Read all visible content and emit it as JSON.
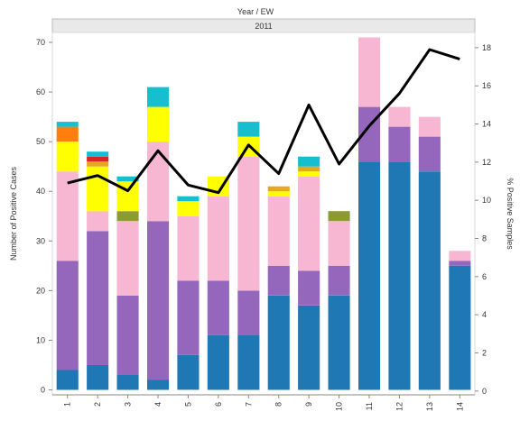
{
  "header": {
    "label": "Year  /  EW",
    "year": "2011"
  },
  "chart_data": {
    "type": "bar",
    "stacked": true,
    "categories": [
      "1",
      "2",
      "3",
      "4",
      "5",
      "6",
      "7",
      "8",
      "9",
      "10",
      "11",
      "12",
      "13",
      "14"
    ],
    "series": [
      {
        "color": "#1f77b4",
        "values": [
          4,
          5,
          3,
          2,
          7,
          11,
          11,
          19,
          17,
          19,
          46,
          46,
          44,
          25
        ]
      },
      {
        "color": "#9467bd",
        "values": [
          22,
          27,
          16,
          32,
          15,
          11,
          9,
          6,
          7,
          6,
          11,
          7,
          7,
          1
        ]
      },
      {
        "color": "#f7b6d2",
        "values": [
          18,
          4,
          15,
          16,
          13,
          17,
          27,
          14,
          19,
          9,
          14,
          4,
          4,
          2
        ]
      },
      {
        "color": "#8c9a33",
        "values": [
          0,
          0,
          2,
          0,
          0,
          0,
          0,
          0,
          0,
          2,
          0,
          0,
          0,
          0
        ]
      },
      {
        "color": "#ffff00",
        "values": [
          6,
          9,
          6,
          7,
          3,
          4,
          4,
          1,
          1,
          0,
          0,
          0,
          0,
          0
        ]
      },
      {
        "color": "#e7a820",
        "values": [
          0,
          1,
          0,
          0,
          0,
          0,
          0,
          1,
          1,
          0,
          0,
          0,
          0,
          0
        ]
      },
      {
        "color": "#ff7f0e",
        "values": [
          3,
          0,
          0,
          0,
          0,
          0,
          0,
          0,
          0,
          0,
          0,
          0,
          0,
          0
        ]
      },
      {
        "color": "#d62728",
        "values": [
          0,
          1,
          0,
          0,
          0,
          0,
          0,
          0,
          0,
          0,
          0,
          0,
          0,
          0
        ]
      },
      {
        "color": "#17becf",
        "values": [
          1,
          1,
          1,
          4,
          1,
          0,
          3,
          0,
          2,
          0,
          0,
          0,
          0,
          0
        ]
      }
    ],
    "line": {
      "color": "#000000",
      "axis": "right",
      "values": [
        10.9,
        11.3,
        10.5,
        12.6,
        10.8,
        10.4,
        12.9,
        11.4,
        15.0,
        11.9,
        13.9,
        15.6,
        17.9,
        17.4
      ]
    },
    "ylabel": "Number of Positive Cases",
    "y2label": "% Positive Samples",
    "ylim": [
      -1,
      72
    ],
    "y2lim": [
      -0.2,
      18.8
    ],
    "yticks": [
      0,
      10,
      20,
      30,
      40,
      50,
      60,
      70
    ],
    "y2ticks": [
      0,
      2,
      4,
      6,
      8,
      10,
      12,
      14,
      16,
      18
    ],
    "grid": false,
    "legend": "none"
  }
}
